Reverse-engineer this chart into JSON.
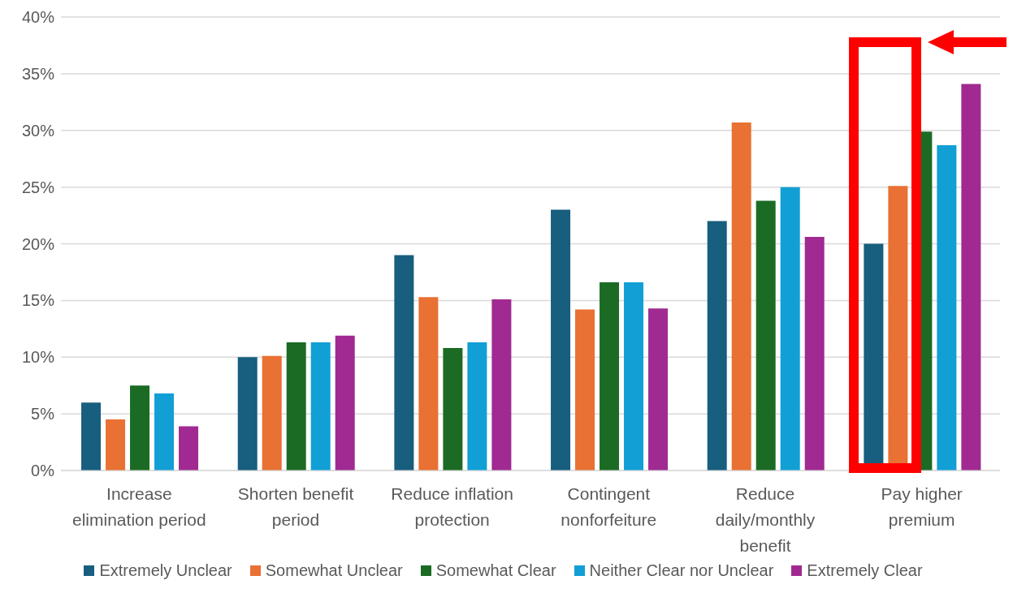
{
  "chart_data": {
    "type": "bar",
    "categories": [
      "Increase elimination period",
      "Shorten benefit period",
      "Reduce inflation protection",
      "Contingent nonforfeiture",
      "Reduce daily/monthly benefit",
      "Pay higher premium"
    ],
    "series": [
      {
        "name": "Extremely Unclear",
        "color": "#175e7f",
        "values": [
          6.0,
          10.0,
          19.0,
          23.0,
          22.0,
          20.0
        ]
      },
      {
        "name": "Somewhat Unclear",
        "color": "#e87133",
        "values": [
          4.5,
          10.1,
          15.3,
          14.2,
          30.7,
          25.1
        ]
      },
      {
        "name": "Somewhat Clear",
        "color": "#1b6b24",
        "values": [
          7.5,
          11.3,
          10.8,
          16.6,
          23.8,
          29.9
        ]
      },
      {
        "name": "Neither Clear nor Unclear",
        "color": "#119fd6",
        "values": [
          6.8,
          11.3,
          11.3,
          16.6,
          25.0,
          28.7
        ]
      },
      {
        "name": "Extremely Clear",
        "color": "#a02a91",
        "values": [
          3.9,
          11.9,
          15.1,
          14.3,
          20.6,
          34.1
        ]
      }
    ],
    "ylim": [
      0,
      40
    ],
    "yticks": [
      {
        "value": 0,
        "label": "0%"
      },
      {
        "value": 5,
        "label": "5%"
      },
      {
        "value": 10,
        "label": "10%"
      },
      {
        "value": 15,
        "label": "15%"
      },
      {
        "value": 20,
        "label": "20%"
      },
      {
        "value": 25,
        "label": "25%"
      },
      {
        "value": 30,
        "label": "30%"
      },
      {
        "value": 35,
        "label": "35%"
      },
      {
        "value": 40,
        "label": "40%"
      }
    ],
    "grid": "y",
    "legend": "bottom"
  }
}
